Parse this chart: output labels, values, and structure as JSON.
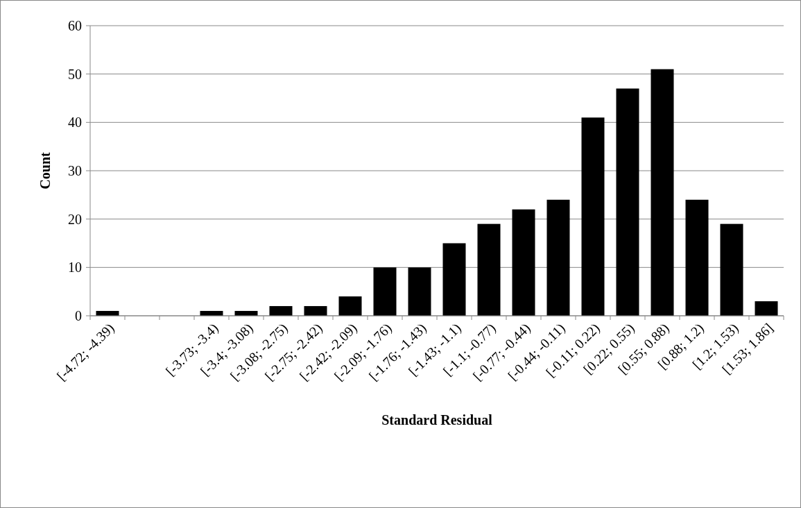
{
  "chart_data": {
    "type": "bar",
    "xlabel": "Standard Residual",
    "ylabel": "Count",
    "categories": [
      "[-4.72; -4.39)",
      null,
      null,
      "[-3.73; -3.4)",
      "[-3.4; -3.08)",
      "[-3.08; -2.75)",
      "[-2.75; -2.42)",
      "[-2.42; -2.09)",
      "[-2.09; -1.76)",
      "[-1.76; -1.43)",
      "[-1.43; -1.1)",
      "[-1.1; -0.77)",
      "[-0.77; -0.44)",
      "[-0.44; -0.11)",
      "[-0.11; 0.22)",
      "[0.22; 0.55)",
      "[0.55; 0.88)",
      "[0.88; 1.2)",
      "[1.2; 1.53)",
      "[1.53; 1.86]"
    ],
    "values": [
      1,
      0,
      0,
      1,
      1,
      2,
      2,
      4,
      10,
      10,
      15,
      19,
      22,
      24,
      41,
      47,
      51,
      24,
      19,
      3
    ],
    "color": "#000000",
    "ylim": [
      0,
      60
    ],
    "yticks": [
      0,
      10,
      20,
      30,
      40,
      50,
      60
    ],
    "grid": "y"
  }
}
